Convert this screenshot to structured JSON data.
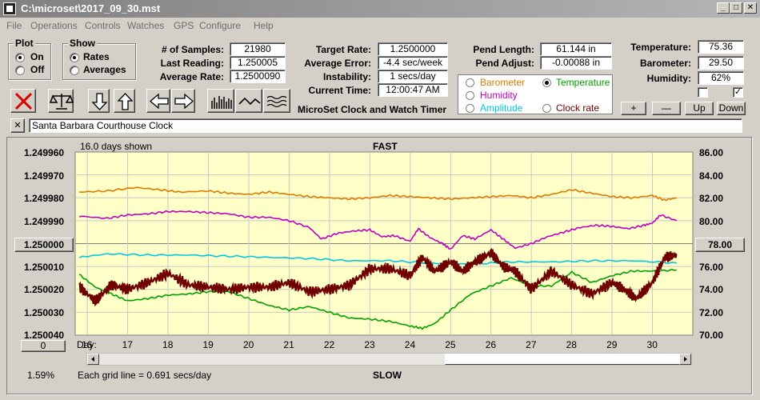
{
  "window": {
    "title": "C:\\microset\\2017_09_30.mst"
  },
  "menu": [
    "File",
    "Operations",
    "Controls",
    "Watches",
    "GPS",
    "Configure",
    "Help"
  ],
  "plot_group": {
    "label": "Plot",
    "on_label": "On",
    "off_label": "Off",
    "selected": "On"
  },
  "show_group": {
    "label": "Show",
    "rates_label": "Rates",
    "averages_label": "Averages",
    "selected": "Rates"
  },
  "stats": {
    "samples_label": "# of Samples:",
    "samples_value": "21980",
    "last_label": "Last Reading:",
    "last_value": "1.250005",
    "avg_label": "Average Rate:",
    "avg_value": "1.2500090"
  },
  "rates": {
    "target_label": "Target Rate:",
    "target_value": "1.2500000",
    "error_label": "Average Error:",
    "error_value": "-4.4 sec/week",
    "instab_label": "Instability:",
    "instab_value": "1 secs/day",
    "time_label": "Current Time:",
    "time_value": "12:00:47 AM"
  },
  "app_caption": "MicroSet Clock and Watch Timer",
  "pendulum": {
    "length_label": "Pend Length:",
    "length_value": "61.144 in",
    "adjust_label": "Pend Adjust:",
    "adjust_value": "-0.00088 in"
  },
  "environment": {
    "temp_label": "Temperature:",
    "temp_value": "75.36",
    "baro_label": "Barometer:",
    "baro_value": "29.50",
    "hum_label": "Humidity:",
    "hum_value": "62%",
    "check_left": false,
    "check_right": true
  },
  "env_buttons": {
    "plus": "+",
    "minus": "—",
    "up": "Up",
    "down": "Down"
  },
  "plot_options": {
    "barometer": "Barometer",
    "temperature": "Temperature",
    "humidity": "Humidity",
    "amplitude": "Amplitude",
    "clock_rate": "Clock rate",
    "selected": "Temperature",
    "colors": {
      "barometer": "#e07800",
      "temperature": "#00a000",
      "humidity": "#c000c0",
      "amplitude": "#00c8e0",
      "clock_rate": "#700000"
    }
  },
  "clock_name": "Santa Barbara Courthouse Clock",
  "close_x": "✕",
  "chart_data": {
    "type": "line",
    "days_shown": "16.0 days shown",
    "top_label": "FAST",
    "bottom_label": "SLOW",
    "grid_note": "Each grid line = 0.691 secs/day",
    "percent": "1.59%",
    "left_center_value": "1.250000",
    "right_center_value": "78.00",
    "left_zero_button": "0",
    "day_label": "Day:",
    "left_ticks": [
      "1.249960",
      "1.249970",
      "1.249980",
      "1.249990",
      "1.250000",
      "1.250010",
      "1.250020",
      "1.250030",
      "1.250040"
    ],
    "right_ticks": [
      "86.00",
      "84.00",
      "82.00",
      "80.00",
      "78.00",
      "76.00",
      "74.00",
      "72.00",
      "70.00"
    ],
    "x_ticks": [
      "16",
      "17",
      "18",
      "19",
      "20",
      "21",
      "22",
      "23",
      "24",
      "25",
      "26",
      "27",
      "28",
      "29",
      "30"
    ],
    "left_ylim": [
      1.25004,
      1.24996
    ],
    "right_ylim": [
      70,
      86
    ],
    "xlim": [
      15.7,
      31.0
    ],
    "series": [
      {
        "name": "Barometer",
        "color": "#e07800",
        "axis": "right",
        "x": [
          15.8,
          16.5,
          17.2,
          17.8,
          18.3,
          19,
          19.5,
          20,
          20.5,
          21,
          21.5,
          22,
          22.5,
          23,
          23.5,
          24,
          24.5,
          25,
          25.5,
          26,
          26.5,
          27,
          27.5,
          28,
          28.5,
          29,
          29.5,
          30,
          30.3,
          30.6
        ],
        "y": [
          82.5,
          82.6,
          82.9,
          82.7,
          82.5,
          82.6,
          82.4,
          82.3,
          82.5,
          82.3,
          82.1,
          82.0,
          81.9,
          82.0,
          82.2,
          82.1,
          82.0,
          81.9,
          82.0,
          82.1,
          82.2,
          82.0,
          82.3,
          82.7,
          82.4,
          82.1,
          82.0,
          82.2,
          81.8,
          82.0
        ]
      },
      {
        "name": "Humidity",
        "color": "#c000c0",
        "axis": "right",
        "x": [
          15.8,
          16.5,
          17,
          17.5,
          18,
          18.5,
          19,
          19.5,
          20,
          20.5,
          21,
          21.5,
          21.8,
          22.2,
          22.6,
          23,
          23.3,
          23.6,
          24,
          24.2,
          24.5,
          24.8,
          25,
          25.3,
          25.6,
          26,
          26.3,
          26.6,
          27,
          27.4,
          27.8,
          28.2,
          28.6,
          29,
          29.4,
          29.8,
          30,
          30.2,
          30.6
        ],
        "y": [
          80.4,
          80.2,
          80.5,
          80.6,
          80.8,
          80.8,
          80.7,
          80.6,
          80.3,
          80.3,
          80.0,
          79.4,
          78.4,
          78.9,
          79.1,
          79.2,
          78.6,
          78.7,
          78.2,
          79.3,
          78.5,
          78.0,
          77.5,
          78.7,
          78.4,
          79.2,
          78.4,
          77.6,
          78.0,
          78.6,
          79.0,
          79.4,
          79.6,
          79.5,
          79.3,
          79.6,
          79.8,
          80.5,
          80.0
        ]
      },
      {
        "name": "Amplitude",
        "color": "#00c8e0",
        "axis": "right",
        "x": [
          15.8,
          16.5,
          17.5,
          18.5,
          19.5,
          20.5,
          21.5,
          22.5,
          23.5,
          24.5,
          25.5,
          26.5,
          27.5,
          28.5,
          29.5,
          30.6
        ],
        "y": [
          76.8,
          77.1,
          77.0,
          77.0,
          76.9,
          76.8,
          76.7,
          76.5,
          76.5,
          76.3,
          76.2,
          76.4,
          76.4,
          76.5,
          76.5,
          76.3
        ]
      },
      {
        "name": "Temperature",
        "color": "#00a000",
        "axis": "right",
        "x": [
          15.8,
          16.2,
          16.6,
          17,
          17.5,
          18,
          18.5,
          19,
          19.5,
          20,
          20.5,
          21,
          21.5,
          22,
          22.5,
          23,
          23.5,
          24,
          24.3,
          24.6,
          25,
          25.5,
          26,
          26.5,
          27,
          27.5,
          28,
          28.5,
          29,
          29.5,
          30,
          30.6
        ],
        "y": [
          75.3,
          74.2,
          73.6,
          73.0,
          73.2,
          73.5,
          73.6,
          73.8,
          73.8,
          73.2,
          72.6,
          72.2,
          72.5,
          72.0,
          71.5,
          71.4,
          71.2,
          70.8,
          70.6,
          71.0,
          72.2,
          73.6,
          74.3,
          75.0,
          74.3,
          74.3,
          75.5,
          74.6,
          75.2,
          75.6,
          75.6,
          75.7
        ]
      },
      {
        "name": "Clock rate",
        "color": "#700000",
        "axis": "left",
        "x": [
          15.8,
          16.2,
          16.6,
          17,
          17.5,
          18,
          18.5,
          19,
          19.5,
          20,
          20.5,
          21,
          21.5,
          22,
          22.5,
          23,
          23.5,
          24,
          24.3,
          24.6,
          25,
          25.3,
          25.6,
          26,
          26.3,
          26.6,
          27,
          27.5,
          28,
          28.5,
          29,
          29.3,
          29.6,
          30,
          30.3,
          30.6
        ],
        "y": [
          1.250019,
          1.250025,
          1.250018,
          1.25002,
          1.250017,
          1.250013,
          1.250018,
          1.250019,
          1.25002,
          1.250019,
          1.250019,
          1.250017,
          1.250021,
          1.25002,
          1.250018,
          1.250011,
          1.250011,
          1.250014,
          1.250006,
          1.250012,
          1.250008,
          1.250012,
          1.250008,
          1.250004,
          1.25001,
          1.250012,
          1.25002,
          1.250012,
          1.250018,
          1.250022,
          1.250017,
          1.25002,
          1.250024,
          1.250017,
          1.250006,
          1.250005
        ]
      }
    ]
  }
}
